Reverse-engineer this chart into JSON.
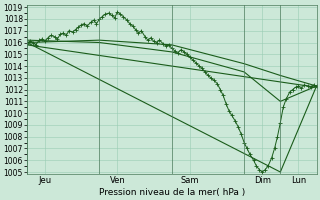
{
  "xlabel": "Pression niveau de la mer( hPa )",
  "ylim": [
    1005,
    1019
  ],
  "yticks": [
    1005,
    1006,
    1007,
    1008,
    1009,
    1010,
    1011,
    1012,
    1013,
    1014,
    1015,
    1016,
    1017,
    1018,
    1019
  ],
  "background_color": "#cce8d8",
  "grid_color": "#99ccb3",
  "line_color": "#1a5c1a",
  "day_labels": [
    "Jeu",
    "Ven",
    "Sam",
    "Dim",
    "Lun"
  ],
  "day_tick_positions": [
    0.25,
    1.25,
    2.25,
    3.25,
    3.75
  ],
  "day_line_positions": [
    0.0,
    1.0,
    2.0,
    3.0,
    3.5,
    4.0
  ],
  "xlim": [
    0.0,
    4.0
  ],
  "series": [
    {
      "x": [
        0.0,
        0.04,
        0.08,
        0.12,
        0.17,
        0.21,
        0.25,
        0.29,
        0.33,
        0.38,
        0.42,
        0.46,
        0.5,
        0.54,
        0.58,
        0.63,
        0.67,
        0.71,
        0.75,
        0.79,
        0.83,
        0.88,
        0.92,
        0.96,
        1.0,
        1.04,
        1.08,
        1.13,
        1.17,
        1.21,
        1.25,
        1.29,
        1.33,
        1.38,
        1.42,
        1.46,
        1.5,
        1.54,
        1.58,
        1.63,
        1.67,
        1.71,
        1.75,
        1.79,
        1.83,
        1.88,
        1.92,
        1.96,
        2.0,
        2.04,
        2.08,
        2.13,
        2.17,
        2.21,
        2.25,
        2.29,
        2.33,
        2.38,
        2.42,
        2.46,
        2.5,
        2.54,
        2.58,
        2.63,
        2.67,
        2.71,
        2.75,
        2.79,
        2.83,
        2.88,
        2.92,
        2.96,
        3.0,
        3.04,
        3.08,
        3.13,
        3.17,
        3.21,
        3.25,
        3.29,
        3.33,
        3.38,
        3.42,
        3.46,
        3.5,
        3.54,
        3.58,
        3.63,
        3.67,
        3.71,
        3.75,
        3.79,
        3.83,
        3.88,
        3.92,
        3.96,
        4.0
      ],
      "y": [
        1015.9,
        1016.1,
        1016.0,
        1015.8,
        1016.2,
        1016.3,
        1016.1,
        1016.4,
        1016.6,
        1016.5,
        1016.3,
        1016.7,
        1016.8,
        1016.6,
        1017.0,
        1016.9,
        1017.1,
        1017.3,
        1017.5,
        1017.6,
        1017.4,
        1017.7,
        1017.9,
        1017.6,
        1018.0,
        1018.2,
        1018.4,
        1018.5,
        1018.3,
        1018.1,
        1018.6,
        1018.4,
        1018.2,
        1017.9,
        1017.6,
        1017.4,
        1017.1,
        1016.8,
        1017.0,
        1016.5,
        1016.2,
        1016.4,
        1016.1,
        1016.0,
        1016.2,
        1015.9,
        1015.7,
        1015.8,
        1015.5,
        1015.3,
        1015.1,
        1015.4,
        1015.2,
        1015.0,
        1014.8,
        1014.5,
        1014.3,
        1014.0,
        1013.8,
        1013.5,
        1013.2,
        1013.0,
        1012.8,
        1012.5,
        1012.0,
        1011.5,
        1010.8,
        1010.2,
        1009.8,
        1009.3,
        1008.8,
        1008.2,
        1007.5,
        1007.0,
        1006.5,
        1006.0,
        1005.5,
        1005.2,
        1005.0,
        1005.2,
        1005.5,
        1006.2,
        1007.0,
        1008.0,
        1009.2,
        1010.5,
        1011.2,
        1011.8,
        1012.0,
        1012.2,
        1012.3,
        1012.1,
        1012.4,
        1012.3,
        1012.2,
        1012.4,
        1012.3
      ],
      "marker": "+",
      "markersize": 2.5,
      "lw": 0.7
    },
    {
      "x": [
        0.0,
        1.0,
        2.0,
        3.0,
        3.5,
        4.0
      ],
      "y": [
        1016.0,
        1016.2,
        1015.8,
        1014.2,
        1013.2,
        1012.3
      ],
      "marker": null,
      "markersize": 0,
      "lw": 0.8
    },
    {
      "x": [
        0.0,
        1.0,
        2.0,
        3.0,
        3.5,
        4.0
      ],
      "y": [
        1016.2,
        1016.0,
        1015.2,
        1013.5,
        1011.0,
        1012.3
      ],
      "marker": null,
      "markersize": 0,
      "lw": 0.8
    },
    {
      "x": [
        0.0,
        3.5,
        4.0
      ],
      "y": [
        1016.0,
        1005.0,
        1012.3
      ],
      "marker": null,
      "markersize": 0,
      "lw": 0.8
    },
    {
      "x": [
        0.0,
        4.0
      ],
      "y": [
        1015.8,
        1012.2
      ],
      "marker": null,
      "markersize": 0,
      "lw": 0.8
    }
  ]
}
